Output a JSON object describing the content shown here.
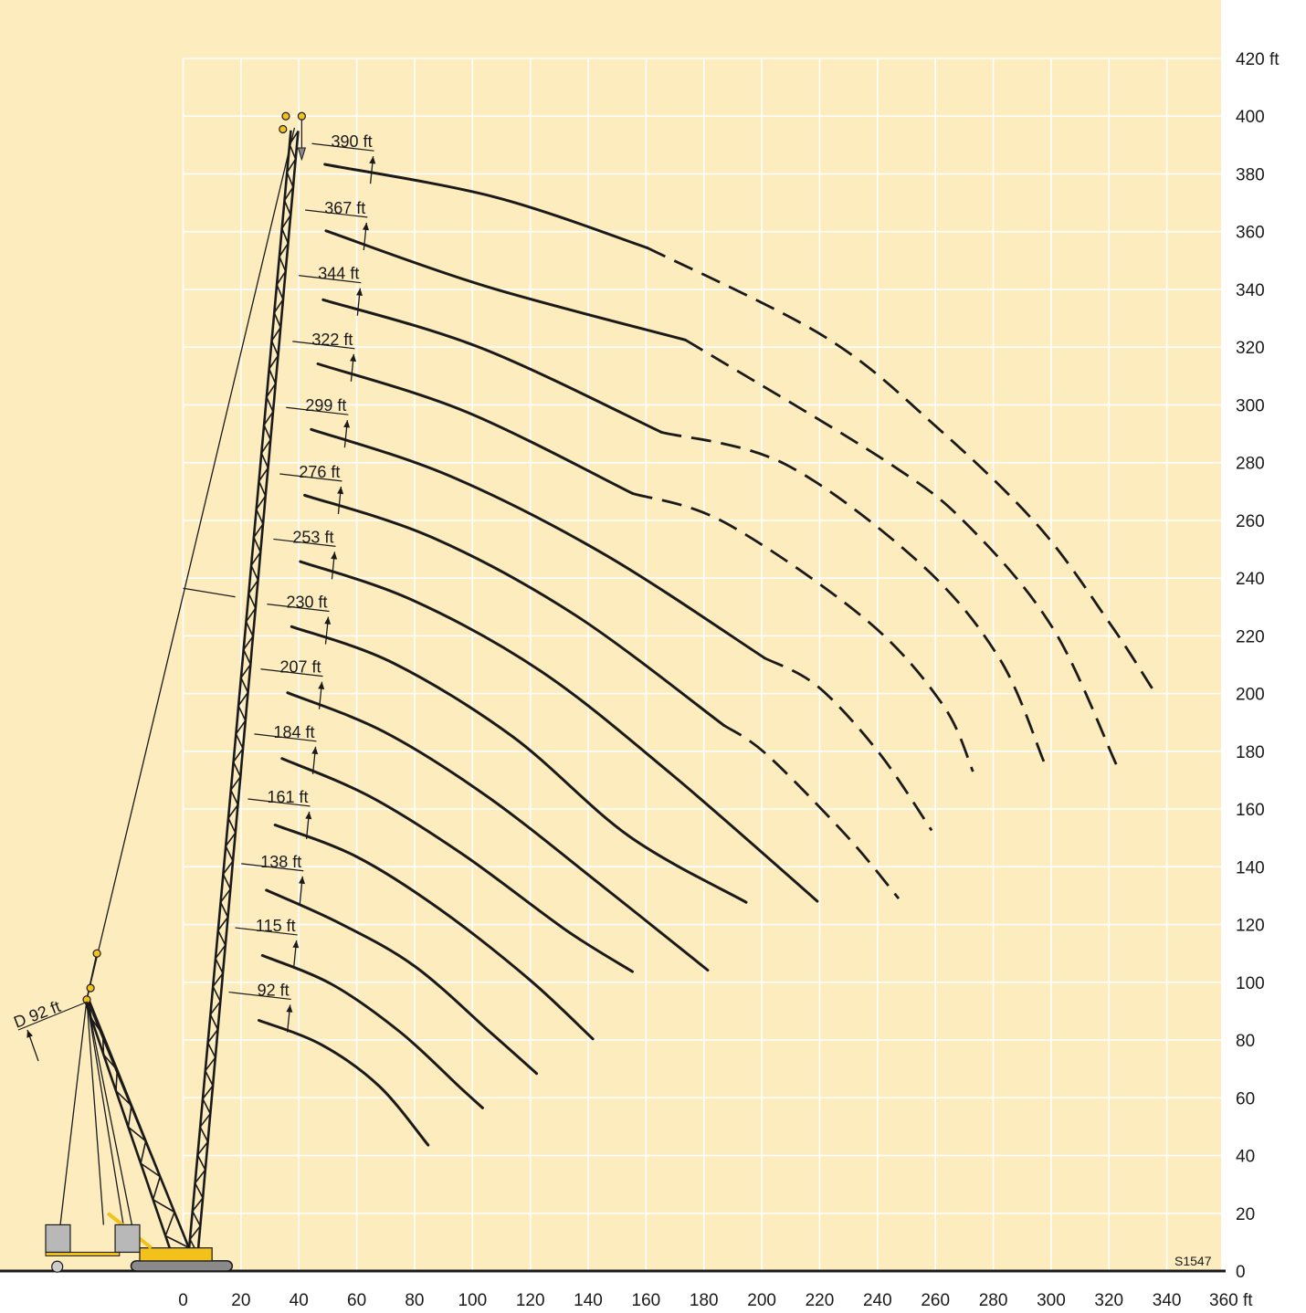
{
  "diagram": {
    "title": "",
    "drawing_code": "S1547",
    "colors": {
      "background": "#fdecbd",
      "grid": "#ffffff",
      "curve": "#1a1a1a",
      "crane": "#f2c21a"
    }
  },
  "chart_data": {
    "type": "line",
    "title": "",
    "x_unit": "ft",
    "y_unit": "ft",
    "xlim": [
      0,
      360
    ],
    "ylim": [
      0,
      420
    ],
    "x_ticks": [
      {
        "value": 0,
        "label": "0"
      },
      {
        "value": 20,
        "label": "20"
      },
      {
        "value": 40,
        "label": "40"
      },
      {
        "value": 60,
        "label": "60"
      },
      {
        "value": 80,
        "label": "80"
      },
      {
        "value": 100,
        "label": "100"
      },
      {
        "value": 120,
        "label": "120"
      },
      {
        "value": 140,
        "label": "140"
      },
      {
        "value": 160,
        "label": "160"
      },
      {
        "value": 180,
        "label": "180"
      },
      {
        "value": 200,
        "label": "200"
      },
      {
        "value": 220,
        "label": "220"
      },
      {
        "value": 240,
        "label": "240"
      },
      {
        "value": 260,
        "label": "260"
      },
      {
        "value": 280,
        "label": "280"
      },
      {
        "value": 300,
        "label": "300"
      },
      {
        "value": 320,
        "label": "320"
      },
      {
        "value": 340,
        "label": "340"
      },
      {
        "value": 360,
        "label": "360 ft"
      }
    ],
    "y_ticks": [
      {
        "value": 0,
        "label": "0"
      },
      {
        "value": 20,
        "label": "20"
      },
      {
        "value": 40,
        "label": "40"
      },
      {
        "value": 60,
        "label": "60"
      },
      {
        "value": 80,
        "label": "80"
      },
      {
        "value": 100,
        "label": "100"
      },
      {
        "value": 120,
        "label": "120"
      },
      {
        "value": 140,
        "label": "140"
      },
      {
        "value": 160,
        "label": "160"
      },
      {
        "value": 180,
        "label": "180"
      },
      {
        "value": 200,
        "label": "200"
      },
      {
        "value": 220,
        "label": "220"
      },
      {
        "value": 240,
        "label": "240"
      },
      {
        "value": 260,
        "label": "260"
      },
      {
        "value": 280,
        "label": "280"
      },
      {
        "value": 300,
        "label": "300"
      },
      {
        "value": 320,
        "label": "320"
      },
      {
        "value": 340,
        "label": "340"
      },
      {
        "value": 360,
        "label": "360"
      },
      {
        "value": 380,
        "label": "380"
      },
      {
        "value": 400,
        "label": "400"
      },
      {
        "value": 420,
        "label": "420 ft"
      }
    ],
    "boom_labels": [
      {
        "label": "92 ft",
        "tip": [
          37.3,
          94.1
        ]
      },
      {
        "label": "115 ft",
        "tip": [
          39.5,
          116.4
        ]
      },
      {
        "label": "138 ft",
        "tip": [
          41.6,
          138.6
        ]
      },
      {
        "label": "161 ft",
        "tip": [
          43.9,
          161.0
        ]
      },
      {
        "label": "184 ft",
        "tip": [
          46.1,
          183.5
        ]
      },
      {
        "label": "207 ft",
        "tip": [
          48.3,
          206.0
        ]
      },
      {
        "label": "230 ft",
        "tip": [
          50.5,
          228.5
        ]
      },
      {
        "label": "253 ft",
        "tip": [
          52.7,
          251.0
        ]
      },
      {
        "label": "276 ft",
        "tip": [
          54.9,
          273.6
        ]
      },
      {
        "label": "299 ft",
        "tip": [
          57.1,
          296.6
        ]
      },
      {
        "label": "322 ft",
        "tip": [
          59.3,
          319.5
        ]
      },
      {
        "label": "344 ft",
        "tip": [
          61.5,
          342.3
        ]
      },
      {
        "label": "367 ft",
        "tip": [
          63.7,
          365.0
        ]
      },
      {
        "label": "390 ft",
        "tip": [
          66.0,
          388.0
        ]
      }
    ],
    "derrick_label": {
      "label": "D 92 ft"
    },
    "series": [
      {
        "points": [
          [
            26.2,
            86.8
          ],
          [
            47.6,
            78.5
          ],
          [
            67.8,
            64.0
          ],
          [
            84.7,
            43.6
          ]
        ],
        "dash_from": null
      },
      {
        "points": [
          [
            27.4,
            109.3
          ],
          [
            51.4,
            99.3
          ],
          [
            75.1,
            82.7
          ],
          [
            95.5,
            63.8
          ],
          [
            103.5,
            56.5
          ]
        ],
        "dash_from": null
      },
      {
        "points": [
          [
            28.8,
            131.9
          ],
          [
            54.2,
            120.4
          ],
          [
            80.0,
            105.6
          ],
          [
            106.5,
            82.4
          ],
          [
            122.2,
            68.4
          ]
        ],
        "dash_from": null
      },
      {
        "points": [
          [
            31.8,
            154.5
          ],
          [
            59.8,
            143.6
          ],
          [
            88.6,
            125.4
          ],
          [
            119.5,
            101.1
          ],
          [
            141.6,
            80.4
          ]
        ],
        "dash_from": null
      },
      {
        "points": [
          [
            34.2,
            177.5
          ],
          [
            64.5,
            164.4
          ],
          [
            97.0,
            144.1
          ],
          [
            132.3,
            118.1
          ],
          [
            155.3,
            103.7
          ]
        ],
        "dash_from": null
      },
      {
        "points": [
          [
            36.1,
            200.3
          ],
          [
            69.4,
            186.8
          ],
          [
            105.2,
            164.3
          ],
          [
            144.2,
            133.9
          ],
          [
            181.3,
            104.2
          ]
        ],
        "dash_from": null
      },
      {
        "points": [
          [
            37.5,
            223.2
          ],
          [
            72.6,
            210.6
          ],
          [
            114.0,
            185.0
          ],
          [
            154.0,
            150.7
          ],
          [
            194.6,
            127.7
          ]
        ],
        "dash_from": null
      },
      {
        "points": [
          [
            40.5,
            245.7
          ],
          [
            79.0,
            232.5
          ],
          [
            123.6,
            207.8
          ],
          [
            168.4,
            172.4
          ],
          [
            219.2,
            128.1
          ]
        ],
        "dash_from": null
      },
      {
        "points": [
          [
            42.0,
            268.7
          ],
          [
            86.3,
            254.0
          ],
          [
            135.5,
            227.2
          ],
          [
            186.9,
            189.0
          ],
          [
            201.7,
            178.9
          ],
          [
            229.5,
            150.5
          ],
          [
            247.3,
            129.0
          ]
        ],
        "dash_from": 3
      },
      {
        "points": [
          [
            44.3,
            291.5
          ],
          [
            91.9,
            275.5
          ],
          [
            145.5,
            248.3
          ],
          [
            201.0,
            212.3
          ],
          [
            219.3,
            202.5
          ],
          [
            240.5,
            179.5
          ],
          [
            258.7,
            152.6
          ]
        ],
        "dash_from": 3
      },
      {
        "points": [
          [
            46.6,
            314.2
          ],
          [
            97.8,
            297.6
          ],
          [
            155.4,
            269.3
          ],
          [
            187.3,
            259.2
          ],
          [
            236.0,
            225.6
          ],
          [
            262.5,
            196.2
          ],
          [
            273.0,
            173.0
          ]
        ],
        "dash_from": 2
      },
      {
        "points": [
          [
            48.4,
            336.4
          ],
          [
            103.0,
            319.7
          ],
          [
            165.4,
            290.5
          ],
          [
            207.8,
            279.6
          ],
          [
            254.6,
            245.2
          ],
          [
            282.1,
            212.2
          ],
          [
            297.5,
            176.4
          ]
        ],
        "dash_from": 2
      },
      {
        "points": [
          [
            49.4,
            360.3
          ],
          [
            104.9,
            341.0
          ],
          [
            173.6,
            322.5
          ],
          [
            244.0,
            279.8
          ],
          [
            272.5,
            257.0
          ],
          [
            301.0,
            222.0
          ],
          [
            322.5,
            175.5
          ]
        ],
        "dash_from": 2
      },
      {
        "points": [
          [
            49.0,
            383.3
          ],
          [
            107.7,
            372.0
          ],
          [
            160.4,
            354.4
          ],
          [
            221.4,
            323.8
          ],
          [
            259.7,
            293.0
          ],
          [
            295.6,
            258.0
          ],
          [
            320.5,
            224.0
          ],
          [
            335.0,
            201.7
          ]
        ],
        "dash_from": 2
      }
    ]
  }
}
